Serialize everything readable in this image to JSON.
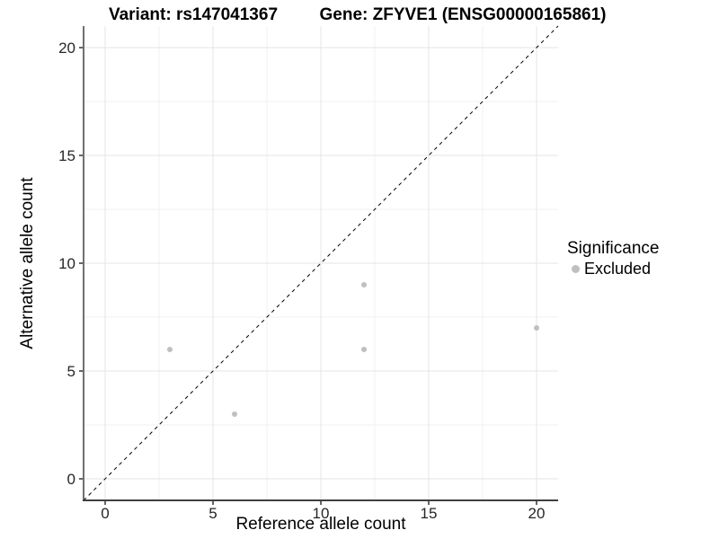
{
  "header": {
    "variant_title": "Variant: rs147041367",
    "gene_title": "Gene: ZFYVE1 (ENSG00000165861)"
  },
  "axes": {
    "x_title": "Reference allele count",
    "y_title": "Alternative allele count"
  },
  "legend": {
    "title": "Significance",
    "items": [
      {
        "label": "Excluded",
        "color": "#bfbfbf"
      }
    ]
  },
  "chart_data": {
    "type": "scatter",
    "title": "Variant: rs147041367 | Gene: ZFYVE1 (ENSG00000165861)",
    "xlabel": "Reference allele count",
    "ylabel": "Alternative allele count",
    "xlim": [
      -1,
      21
    ],
    "ylim": [
      -1,
      21
    ],
    "x_ticks": [
      0,
      5,
      10,
      15,
      20
    ],
    "y_ticks": [
      0,
      5,
      10,
      15,
      20
    ],
    "x_minor_ticks": [
      2.5,
      7.5,
      12.5,
      17.5
    ],
    "y_minor_ticks": [
      2.5,
      7.5,
      12.5,
      17.5
    ],
    "grid": true,
    "legend_position": "right",
    "legend_title": "Significance",
    "series": [
      {
        "name": "Excluded",
        "color": "#bfbfbf",
        "points": [
          [
            3,
            6
          ],
          [
            6,
            3
          ],
          [
            12,
            6
          ],
          [
            12,
            9
          ],
          [
            20,
            7
          ]
        ]
      }
    ],
    "reference_line": {
      "type": "identity",
      "slope": 1,
      "intercept": 0,
      "style": "dashed",
      "color": "#000000"
    }
  },
  "style": {
    "grid_major_color": "#e4e4e4",
    "grid_minor_color": "#f2f2f2",
    "axis_line_color": "#404040",
    "tick_color": "#333333",
    "point_radius": 3
  }
}
